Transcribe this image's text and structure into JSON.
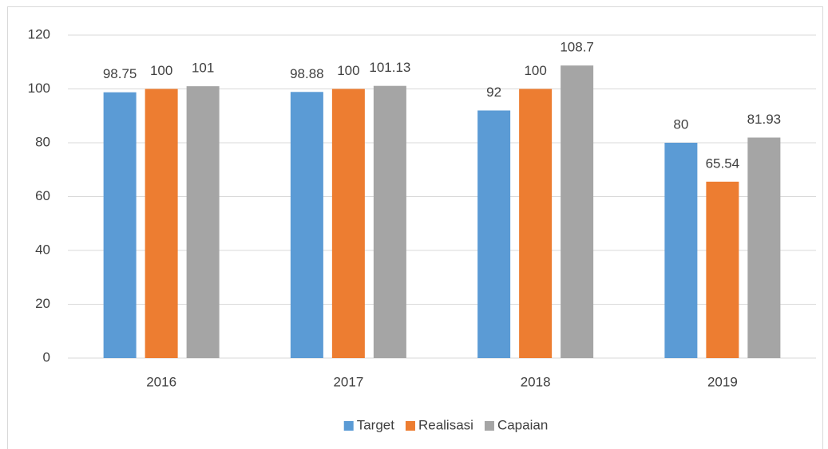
{
  "chart_data": {
    "type": "bar",
    "categories": [
      "2016",
      "2017",
      "2018",
      "2019"
    ],
    "series": [
      {
        "name": "Target",
        "color": "#5b9bd5",
        "values": [
          98.75,
          98.88,
          92,
          80
        ]
      },
      {
        "name": "Realisasi",
        "color": "#ed7d31",
        "values": [
          100,
          100,
          100,
          65.54
        ]
      },
      {
        "name": "Capaian",
        "color": "#a5a5a5",
        "values": [
          101,
          101.13,
          108.7,
          81.93
        ]
      }
    ],
    "ylim": [
      0,
      120
    ],
    "yticks": [
      0,
      20,
      40,
      60,
      80,
      100,
      120
    ],
    "grid": true,
    "legend": "bottom"
  }
}
